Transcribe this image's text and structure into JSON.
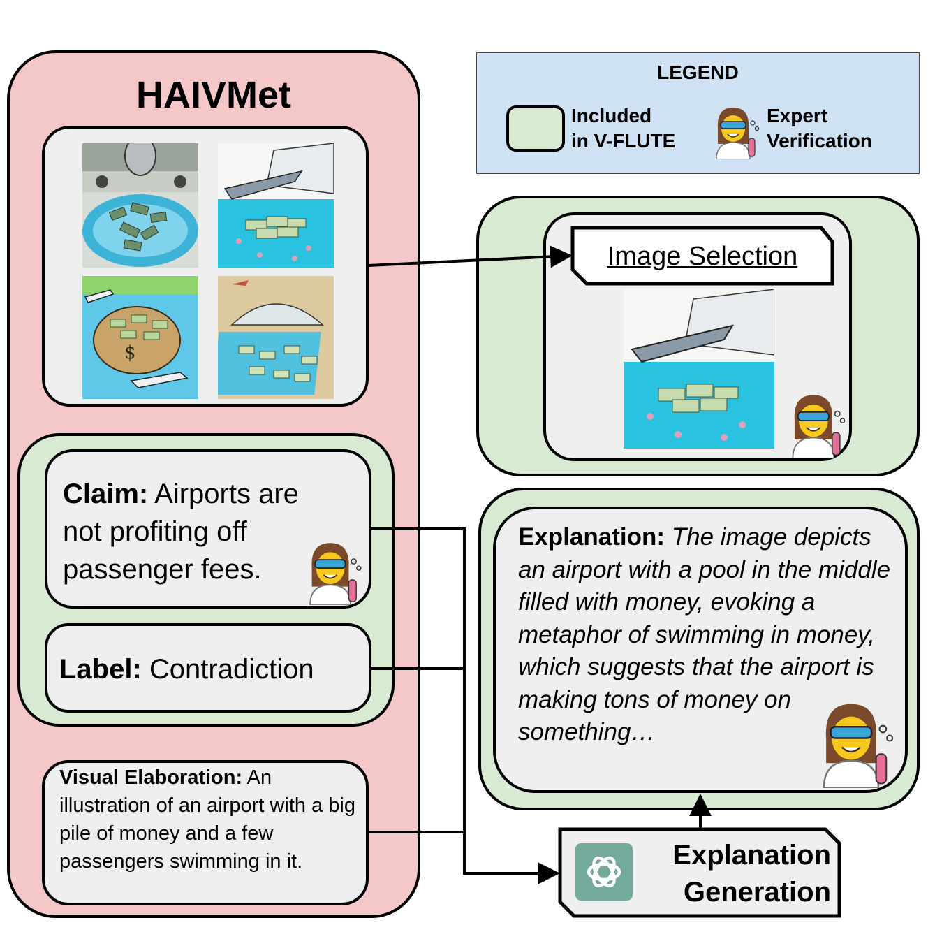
{
  "haivmet": {
    "title": "HAIVMet"
  },
  "claim": {
    "prefix": "Claim:",
    "text": " Airports are not profiting off passenger fees."
  },
  "label": {
    "prefix": "Label:",
    "text": " Contradiction"
  },
  "visual_elaboration": {
    "prefix": "Visual Elaboration:",
    "text": " An illustration of an airport with a big pile of money and a few passengers swimming in it."
  },
  "legend": {
    "title": "LEGEND",
    "included_line1": "Included",
    "included_line2": "in V-FLUTE",
    "expert_line1": "Expert",
    "expert_line2": "Verification"
  },
  "image_selection": {
    "label": "Image Selection"
  },
  "explanation": {
    "prefix": "Explanation:",
    "text": " The image depicts an airport with a pool in the middle filled with money, evoking a metaphor of swimming in money, which suggests that the airport is making tons of money on something…"
  },
  "explanation_generation": {
    "line1": "Explanation",
    "line2": "Generation"
  },
  "colors": {
    "haivmet_panel": "#f4c7c9",
    "vflute_green": "#d9ead3",
    "legend_blue": "#cfe2f3",
    "inner_gray": "#efefef",
    "openai_teal": "#74aa9c"
  }
}
